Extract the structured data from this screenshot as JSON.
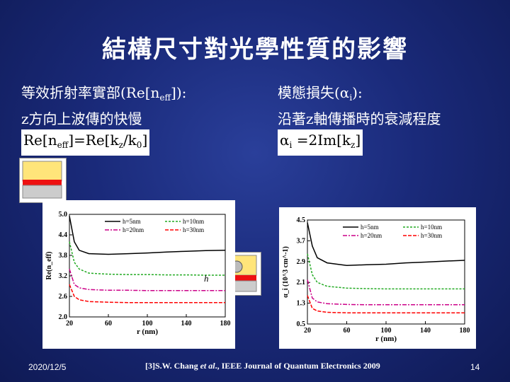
{
  "title": "結構尺寸對光學性質的影響",
  "left": {
    "line1_pre": "等效折射率實部(Re[n",
    "line1_sub": "eff",
    "line1_post": "]):",
    "line2": "z方向上波傳的快慢",
    "formula_pre": "Re[n",
    "formula_sub1": "eff",
    "formula_mid": "]=Re[k",
    "formula_sub2": "z",
    "formula_mid2": "/k",
    "formula_sub3": "0",
    "formula_post": "]"
  },
  "right": {
    "line1_pre": "模態損失(α",
    "line1_sub": "i",
    "line1_post": "):",
    "line2": "沿著z軸傳播時的衰減程度",
    "formula_pre": "α",
    "formula_sub1": "i",
    "formula_mid": " =2Im[k",
    "formula_sub2": "z",
    "formula_post": "]"
  },
  "h_label": "h",
  "footer": {
    "date": "2020/12/5",
    "cite_pre": "[3]S.W. Chang ",
    "cite_etal": "et al",
    "cite_post": "., IEEE Journal of Quantum Electronics 2009",
    "page": "14"
  },
  "chart_data": [
    {
      "type": "line",
      "xlabel": "r (nm)",
      "ylabel": "Re(n_eff)",
      "xlim": [
        20,
        180
      ],
      "ylim": [
        2.0,
        5.0
      ],
      "xticks": [
        "20",
        "60",
        "100",
        "140",
        "180"
      ],
      "yticks": [
        "2.0",
        "2.6",
        "3.2",
        "3.8",
        "4.4",
        "5.0"
      ],
      "x": [
        20,
        25,
        30,
        40,
        60,
        80,
        100,
        120,
        140,
        160,
        180
      ],
      "series": [
        {
          "name": "h=5nm",
          "color": "#000000",
          "dash": "",
          "values": [
            4.95,
            4.2,
            3.95,
            3.85,
            3.83,
            3.85,
            3.87,
            3.9,
            3.92,
            3.94,
            3.95
          ]
        },
        {
          "name": "h=10nm",
          "color": "#22aa22",
          "dash": "3,2",
          "values": [
            4.2,
            3.6,
            3.4,
            3.28,
            3.25,
            3.24,
            3.24,
            3.23,
            3.23,
            3.22,
            3.22
          ]
        },
        {
          "name": "h=20nm",
          "color": "#cc0088",
          "dash": "6,2,2,2",
          "values": [
            3.4,
            2.95,
            2.85,
            2.8,
            2.78,
            2.78,
            2.77,
            2.77,
            2.77,
            2.77,
            2.77
          ]
        },
        {
          "name": "h=30nm",
          "color": "#ff0000",
          "dash": "5,2",
          "values": [
            2.95,
            2.6,
            2.5,
            2.45,
            2.43,
            2.42,
            2.42,
            2.42,
            2.42,
            2.42,
            2.42
          ]
        }
      ]
    },
    {
      "type": "line",
      "xlabel": "r (nm)",
      "ylabel": "α_i (10^3 cm^-1)",
      "xlim": [
        20,
        180
      ],
      "ylim": [
        0.5,
        4.5
      ],
      "xticks": [
        "20",
        "60",
        "100",
        "140",
        "180"
      ],
      "yticks": [
        "0.5",
        "1.3",
        "2.1",
        "2.9",
        "3.7",
        "4.5"
      ],
      "x": [
        20,
        25,
        30,
        40,
        60,
        80,
        100,
        120,
        140,
        160,
        180
      ],
      "series": [
        {
          "name": "h=5nm",
          "color": "#000000",
          "dash": "",
          "values": [
            4.4,
            3.5,
            3.05,
            2.85,
            2.75,
            2.78,
            2.8,
            2.85,
            2.88,
            2.92,
            2.95
          ]
        },
        {
          "name": "h=10nm",
          "color": "#22aa22",
          "dash": "3,2",
          "values": [
            3.2,
            2.4,
            2.1,
            1.95,
            1.88,
            1.86,
            1.85,
            1.85,
            1.85,
            1.85,
            1.85
          ]
        },
        {
          "name": "h=20nm",
          "color": "#cc0088",
          "dash": "6,2,2,2",
          "values": [
            2.2,
            1.5,
            1.35,
            1.28,
            1.25,
            1.24,
            1.24,
            1.24,
            1.24,
            1.24,
            1.24
          ]
        },
        {
          "name": "h=30nm",
          "color": "#ff0000",
          "dash": "5,2",
          "values": [
            1.6,
            1.1,
            1.0,
            0.95,
            0.93,
            0.93,
            0.93,
            0.93,
            0.93,
            0.93,
            0.93
          ]
        }
      ]
    }
  ]
}
